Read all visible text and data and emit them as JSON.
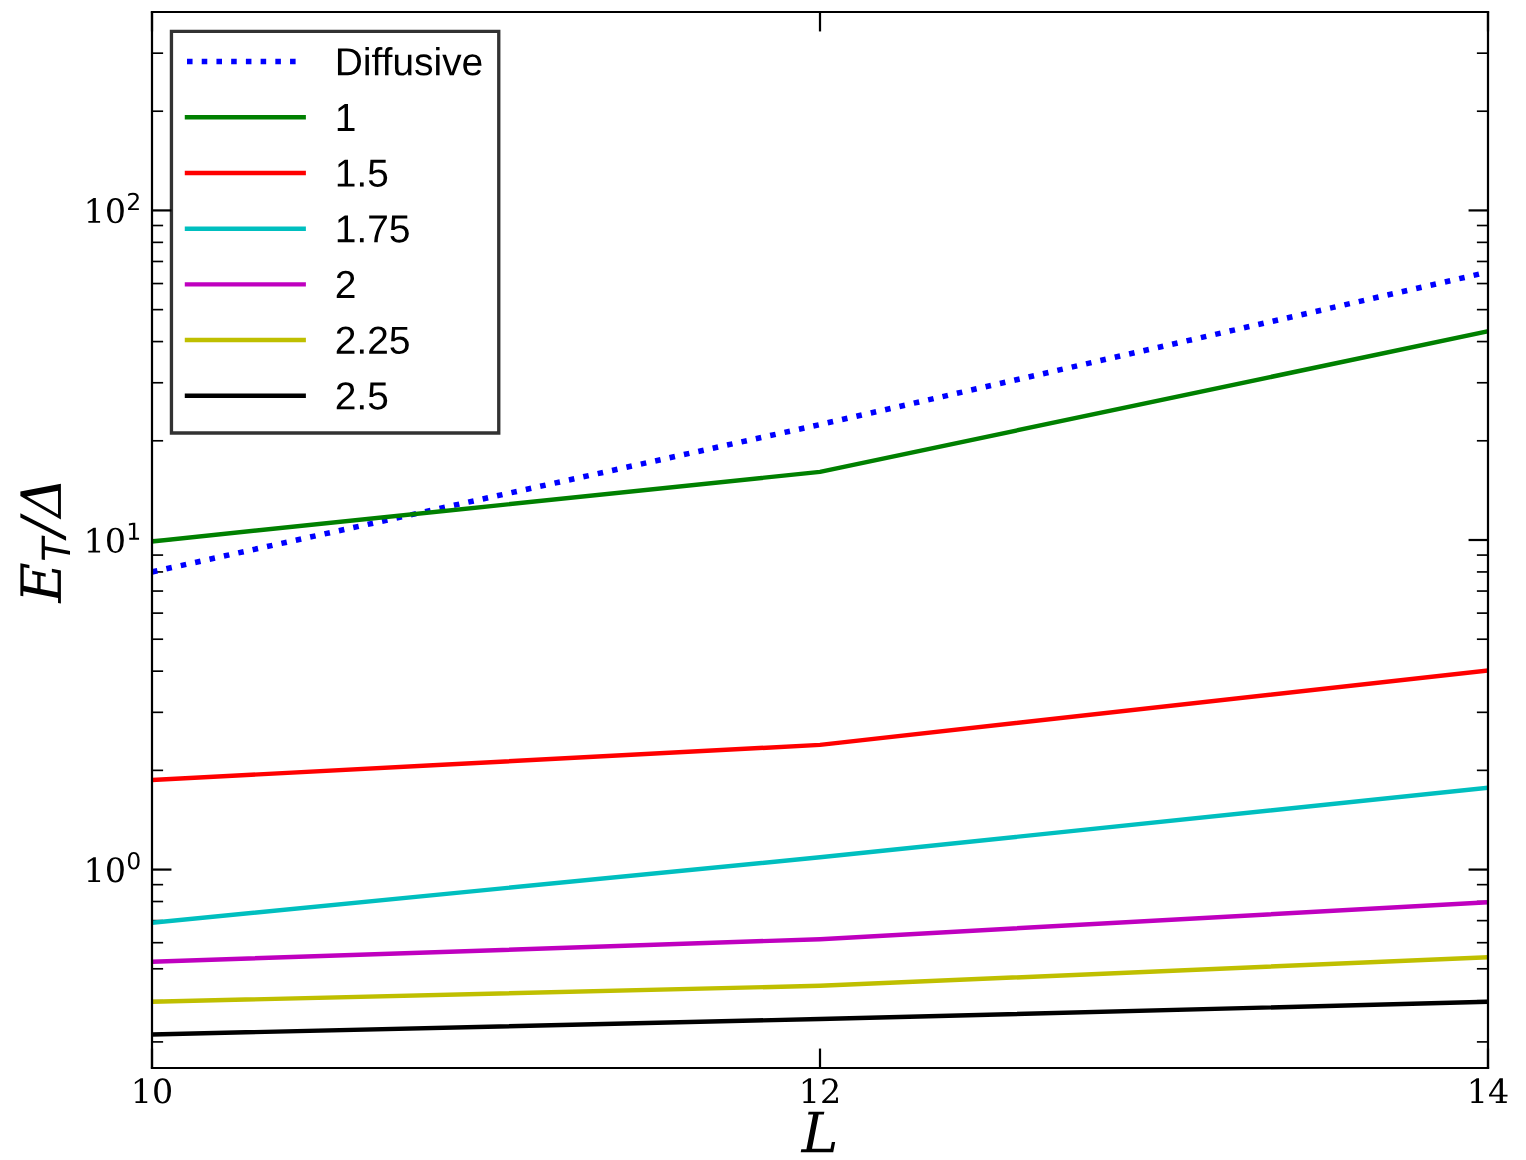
{
  "chart_data": {
    "type": "line",
    "xlabel": "L",
    "ylabel": "E$_{T}$/Δ",
    "x": [
      10,
      12,
      14
    ],
    "series": [
      {
        "name": "Diffusive",
        "color": "#0000ff",
        "line_style": "dotted",
        "values": [
          8.0,
          22.4,
          65
        ]
      },
      {
        "name": "1",
        "color": "#008000",
        "values": [
          9.9,
          16.1,
          43
        ]
      },
      {
        "name": "1.5",
        "color": "#ff0000",
        "values": [
          1.87,
          2.39,
          4.02
        ]
      },
      {
        "name": "1.75",
        "color": "#00bfbf",
        "values": [
          0.69,
          1.09,
          1.77
        ]
      },
      {
        "name": "2",
        "color": "#bf00bf",
        "values": [
          0.525,
          0.615,
          0.796
        ]
      },
      {
        "name": "2.25",
        "color": "#bfbf00",
        "values": [
          0.397,
          0.444,
          0.542
        ]
      },
      {
        "name": "2.5",
        "color": "#000000",
        "values": [
          0.316,
          0.352,
          0.397
        ]
      }
    ],
    "log": "y",
    "xlim": [
      10,
      14
    ],
    "xticks": [
      10,
      12,
      14
    ],
    "ylim": [
      0.25,
      400
    ],
    "yticks": [
      {
        "value": 1,
        "label": "10$^{0}$"
      },
      {
        "value": 10,
        "label": "10$^{1}$"
      },
      {
        "value": 100,
        "label": "10$^{2}$"
      }
    ],
    "grid": false,
    "legend": "top left",
    "marker": "none",
    "line_style": "solid"
  }
}
